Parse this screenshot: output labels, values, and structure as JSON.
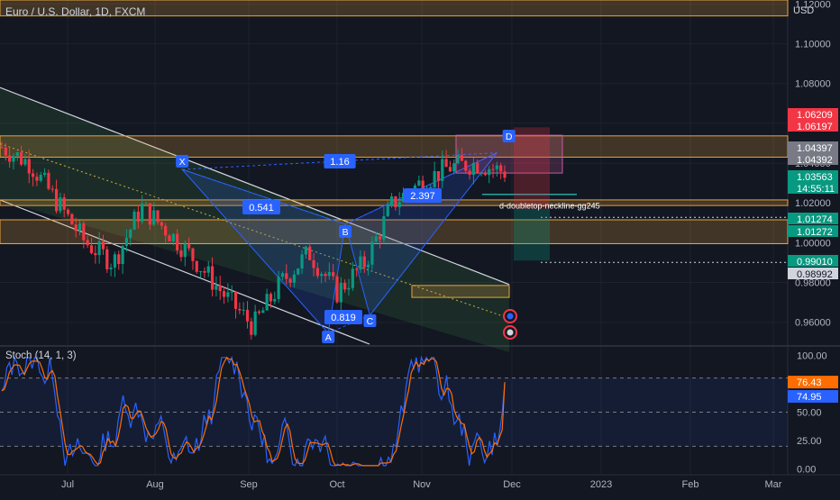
{
  "header": {
    "symbol": "Euro / U.S. Dollar, 1D, FXCM",
    "currency": "USD"
  },
  "chart_data": {
    "type": "candlestick",
    "title": "Euro / U.S. Dollar, 1D, FXCM",
    "price_axis": {
      "ticks": [
        "1.12000",
        "1.10000",
        "1.08000",
        "1.06000",
        "1.04000",
        "1.02000",
        "1.00000",
        "0.98000",
        "0.96000"
      ],
      "tick_values": [
        1.12,
        1.1,
        1.08,
        1.06,
        1.04,
        1.02,
        1.0,
        0.98,
        0.96
      ],
      "range": [
        0.949,
        1.122
      ]
    },
    "price_badges": [
      {
        "label": "1.06209",
        "value": 1.06209,
        "color": "#f23645"
      },
      {
        "label": "1.06197",
        "value": 1.06197,
        "color": "#f23645"
      },
      {
        "label": "1.04397",
        "value": 1.04397,
        "color": "#787b86"
      },
      {
        "label": "1.04392",
        "value": 1.04392,
        "color": "#787b86"
      },
      {
        "label": "1.03563",
        "sub": "14:55:11",
        "value": 1.03563,
        "color": "#089981"
      },
      {
        "label": "1.01274",
        "value": 1.01274,
        "color": "#089981"
      },
      {
        "label": "1.01272",
        "value": 1.01272,
        "color": "#089981"
      },
      {
        "label": "0.99010",
        "value": 0.9901,
        "color": "#089981"
      },
      {
        "label": "0.98992",
        "value": 0.98992,
        "color": "#d1d4dc"
      }
    ],
    "time_axis": {
      "labels": [
        "Jul",
        "Aug",
        "Sep",
        "Oct",
        "Nov",
        "Dec",
        "2023",
        "Feb",
        "Mar"
      ]
    },
    "pattern_labels": [
      {
        "text": "X",
        "date": "Aug 10",
        "price": 1.0368
      },
      {
        "text": "A",
        "date": "Sep 28",
        "price": 0.9535
      },
      {
        "text": "B",
        "date": "Oct 4",
        "price": 1.0093
      },
      {
        "text": "C",
        "date": "Oct 13",
        "price": 0.9632
      },
      {
        "text": "D",
        "date": "Nov 30",
        "price": 1.05
      }
    ],
    "ratio_labels": [
      {
        "text": "0.541",
        "date": "Sep 10",
        "price": 1.0158
      },
      {
        "text": "1.16",
        "date": "Oct 5",
        "price": 1.0372
      },
      {
        "text": "0.819",
        "date": "Oct 5",
        "price": 0.9625
      },
      {
        "text": "2.397",
        "date": "Nov 3",
        "price": 1.0234
      }
    ],
    "annotation": {
      "text": "d-doubletop-neckline-gg245",
      "price": 1.019
    },
    "zones": [
      {
        "from": 1.114,
        "to": 1.122,
        "color": "#e8a33d"
      },
      {
        "from": 1.043,
        "to": 1.0537,
        "color": "#e8a33d"
      },
      {
        "from": 1.0187,
        "to": 1.0215,
        "color": "#e8a33d"
      },
      {
        "from": 0.9995,
        "to": 1.0115,
        "color": "#e8a33d"
      },
      {
        "from": 0.9725,
        "to": 0.9785,
        "color": "#e8a33d"
      }
    ],
    "series": [
      {
        "name": "EURUSD",
        "approx_close": [
          1.048,
          1.04,
          1.02,
          1.0,
          0.99,
          1.018,
          1.005,
          0.99,
          0.973,
          0.958,
          0.98,
          0.995,
          0.975,
          0.99,
          1.02,
          1.03,
          1.038,
          1.04,
          1.0356
        ]
      }
    ],
    "stochastic": {
      "title": "Stoch (14, 1, 3)",
      "ticks": [
        "100.00",
        "50.00",
        "25.00",
        "0.00"
      ],
      "tick_values": [
        100,
        50,
        25,
        0
      ],
      "bands": [
        80,
        50,
        20
      ],
      "k_value": "74.95",
      "d_value": "76.43",
      "k_color": "#2962ff",
      "d_color": "#ff6d00",
      "range": [
        -5,
        105
      ]
    },
    "grid": true,
    "legend": "top-left"
  },
  "colors": {
    "background": "#131722",
    "up": "#089981",
    "down": "#f23645",
    "zone": "#e8a33d",
    "label_bg": "#2962ff"
  }
}
